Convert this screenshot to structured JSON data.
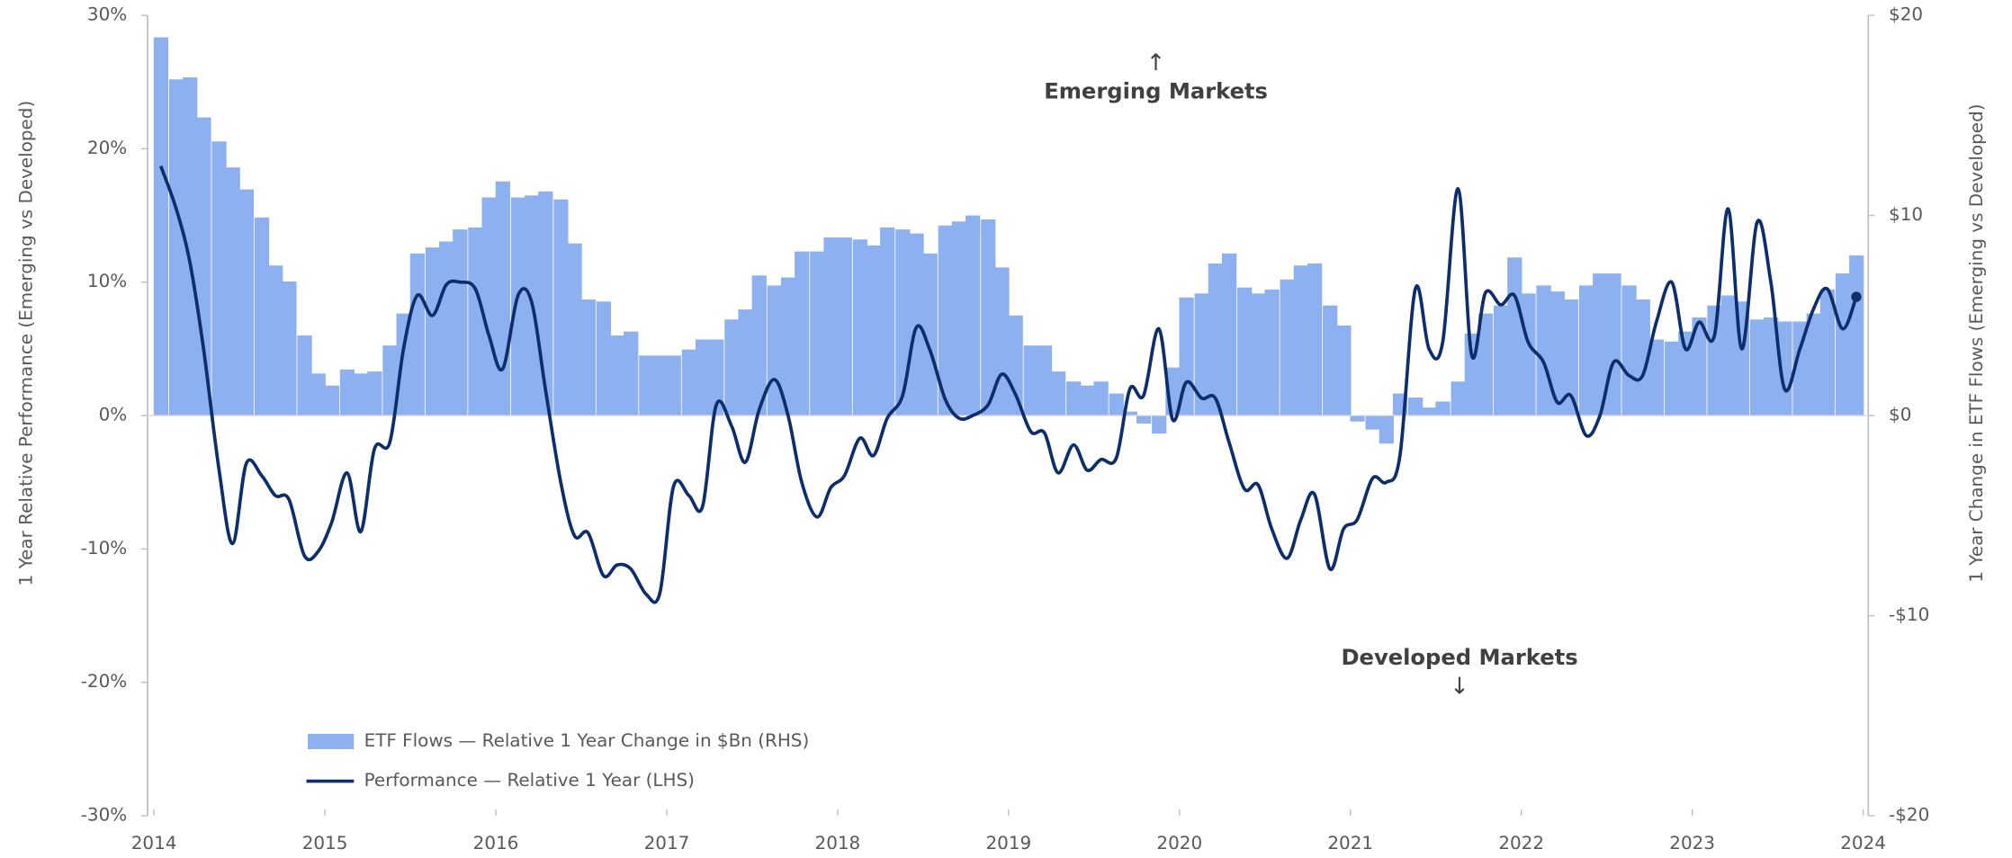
{
  "chart_data": {
    "type": "bar-line",
    "y_label": "1 Year Relative Performance (Emerging vs Developed)",
    "y2_label": "1 Year Change in ETF Flows (Emerging vs Developed)",
    "annotations": [
      "↑",
      "Emerging Markets",
      "Developed Markets",
      "↓"
    ],
    "xlim": [
      2014,
      2024
    ],
    "xticks": [
      2014,
      2015,
      2016,
      2017,
      2018,
      2019,
      2020,
      2021,
      2022,
      2023,
      2024
    ],
    "ylim": [
      -30,
      30
    ],
    "yticks": [
      {
        "value": 30,
        "label": "30%"
      },
      {
        "value": 20,
        "label": "20%"
      },
      {
        "value": 10,
        "label": "10%"
      },
      {
        "value": 0,
        "label": "0%"
      },
      {
        "value": -10,
        "label": "-10%"
      },
      {
        "value": -20,
        "label": "-20%"
      },
      {
        "value": -30,
        "label": "-30%"
      }
    ],
    "y2lim": [
      -20,
      20
    ],
    "y2ticks": [
      {
        "value": 20,
        "label": "$20"
      },
      {
        "value": 10,
        "label": "$10"
      },
      {
        "value": 0,
        "label": "$0"
      },
      {
        "value": -10,
        "label": "-$10"
      },
      {
        "value": -20,
        "label": "-$20"
      }
    ],
    "x": [
      2014.04,
      2014.13,
      2014.21,
      2014.29,
      2014.38,
      2014.46,
      2014.54,
      2014.63,
      2014.71,
      2014.79,
      2014.88,
      2014.96,
      2015.04,
      2015.13,
      2015.21,
      2015.29,
      2015.38,
      2015.46,
      2015.54,
      2015.63,
      2015.71,
      2015.79,
      2015.88,
      2015.96,
      2016.04,
      2016.13,
      2016.21,
      2016.29,
      2016.38,
      2016.46,
      2016.54,
      2016.63,
      2016.71,
      2016.79,
      2016.88,
      2016.96,
      2017.04,
      2017.13,
      2017.21,
      2017.29,
      2017.38,
      2017.46,
      2017.54,
      2017.63,
      2017.71,
      2017.79,
      2017.88,
      2017.96,
      2018.04,
      2018.13,
      2018.21,
      2018.29,
      2018.38,
      2018.46,
      2018.54,
      2018.63,
      2018.71,
      2018.79,
      2018.88,
      2018.96,
      2019.04,
      2019.13,
      2019.21,
      2019.29,
      2019.38,
      2019.46,
      2019.54,
      2019.63,
      2019.71,
      2019.79,
      2019.88,
      2019.96,
      2020.04,
      2020.13,
      2020.21,
      2020.29,
      2020.38,
      2020.46,
      2020.54,
      2020.63,
      2020.71,
      2020.79,
      2020.88,
      2020.96,
      2021.04,
      2021.13,
      2021.21,
      2021.29,
      2021.38,
      2021.46,
      2021.54,
      2021.63,
      2021.71,
      2021.79,
      2021.88,
      2021.96,
      2022.04,
      2022.13,
      2022.21,
      2022.29,
      2022.38,
      2022.46,
      2022.54,
      2022.63,
      2022.71,
      2022.79,
      2022.88,
      2022.96,
      2023.04,
      2023.13,
      2023.21,
      2023.29,
      2023.38,
      2023.46,
      2023.54,
      2023.63,
      2023.71,
      2023.79,
      2023.88,
      2023.96
    ],
    "series": [
      {
        "name": "ETF Flows  —  Relative 1 Year Change in $Bn (RHS)",
        "kind": "bar",
        "axis": "y2",
        "color": "#8db0f0",
        "values": [
          18.9,
          16.8,
          16.9,
          14.9,
          13.7,
          12.4,
          11.3,
          9.9,
          7.5,
          6.7,
          4.0,
          2.1,
          1.5,
          2.3,
          2.1,
          2.2,
          3.5,
          5.1,
          8.1,
          8.4,
          8.7,
          9.3,
          9.4,
          10.9,
          11.7,
          10.9,
          11.0,
          11.2,
          10.8,
          8.6,
          5.8,
          5.7,
          4.0,
          4.2,
          3.0,
          3.0,
          3.0,
          3.3,
          3.8,
          3.8,
          4.8,
          5.3,
          7.0,
          6.5,
          6.9,
          8.2,
          8.2,
          8.9,
          8.9,
          8.8,
          8.5,
          9.4,
          9.3,
          9.1,
          8.1,
          9.5,
          9.7,
          10.0,
          9.8,
          7.4,
          5.0,
          3.5,
          3.5,
          2.2,
          1.7,
          1.5,
          1.7,
          1.1,
          0.2,
          -0.4,
          -0.9,
          2.4,
          5.9,
          6.1,
          7.6,
          8.1,
          6.4,
          6.1,
          6.3,
          6.8,
          7.5,
          7.6,
          5.5,
          4.5,
          -0.3,
          -0.7,
          -1.4,
          1.1,
          0.9,
          0.4,
          0.7,
          1.7,
          4.1,
          5.1,
          5.5,
          7.9,
          6.1,
          6.5,
          6.2,
          5.8,
          6.5,
          7.1,
          7.1,
          6.5,
          5.8,
          3.8,
          3.7,
          4.2,
          4.9,
          5.5,
          6.0,
          5.7,
          4.8,
          4.9,
          4.7,
          4.7,
          5.1,
          6.3,
          7.1,
          8.0
        ]
      },
      {
        "name": "Performance  —  Relative 1 Year (LHS)",
        "kind": "line",
        "color": "#0d2d6b",
        "values": [
          18.7,
          15.5,
          11.5,
          5,
          -4,
          -9.6,
          -3.6,
          -4.5,
          -6,
          -6.3,
          -10.5,
          -10.2,
          -8,
          -4.3,
          -8.7,
          -2.5,
          -2,
          5,
          9,
          7.5,
          9.8,
          10,
          9.5,
          6,
          3.5,
          9,
          8.5,
          2,
          -5,
          -9,
          -8.8,
          -12,
          -11.2,
          -11.5,
          -13.4,
          -13.3,
          -5.3,
          -6,
          -6.8,
          0.8,
          -0.8,
          -3.5,
          0.4,
          2.7,
          0,
          -5,
          -7.6,
          -5.4,
          -4.5,
          -1.7,
          -3,
          -0.2,
          1.5,
          6.6,
          4.9,
          1.2,
          -0.2,
          0,
          0.8,
          3.1,
          1.6,
          -1.2,
          -1.3,
          -4.3,
          -2.2,
          -4.1,
          -3.3,
          -3.2,
          2,
          1.5,
          6.5,
          -0.3,
          2.5,
          1.3,
          1.3,
          -2,
          -5.5,
          -5.2,
          -8.5,
          -10.7,
          -7.8,
          -5.9,
          -11.5,
          -8.5,
          -7.8,
          -4.7,
          -5,
          -3,
          9.5,
          5,
          5.5,
          17,
          4.5,
          9.2,
          8.3,
          9,
          5.5,
          4,
          1,
          1.5,
          -1.5,
          0,
          4,
          3,
          3,
          7,
          10,
          5,
          7,
          6,
          15.5,
          5,
          14.5,
          10,
          2,
          5,
          8,
          9.5,
          6.5,
          8.9
        ]
      }
    ]
  }
}
